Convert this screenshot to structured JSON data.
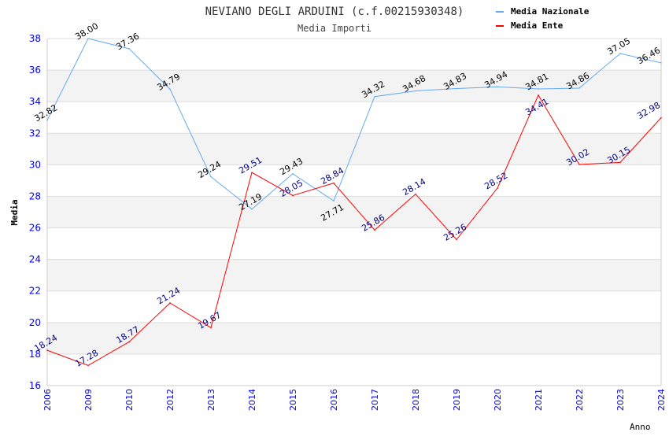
{
  "chart_data": {
    "type": "line",
    "title": "NEVIANO DEGLI ARDUINI (c.f.00215930348)",
    "subtitle": "Media Importi",
    "xlabel": "Anno",
    "ylabel": "Media",
    "ylim": [
      16,
      38
    ],
    "yticks": [
      "16",
      "18",
      "20",
      "22",
      "24",
      "26",
      "28",
      "30",
      "32",
      "34",
      "36",
      "38"
    ],
    "categories": [
      "2006",
      "2009",
      "2010",
      "2012",
      "2013",
      "2014",
      "2015",
      "2016",
      "2017",
      "2018",
      "2019",
      "2020",
      "2021",
      "2022",
      "2023",
      "2024"
    ],
    "grid": true,
    "legend_position": "top-right",
    "series": [
      {
        "name": "Media Nazionale",
        "color": "#66aaee",
        "label_color": "#000000",
        "values": [
          32.82,
          38.0,
          37.36,
          34.79,
          29.24,
          27.19,
          29.43,
          27.71,
          34.32,
          34.68,
          34.83,
          34.94,
          34.81,
          34.86,
          37.05,
          36.46
        ],
        "labels": [
          "32.82",
          "38.00",
          "37.36",
          "34.79",
          "29.24",
          "27.19",
          "29.43",
          "27.71",
          "34.32",
          "34.68",
          "34.83",
          "34.94",
          "34.81",
          "34.86",
          "37.05",
          "36.46"
        ]
      },
      {
        "name": "Media Ente",
        "color": "#ff0000",
        "label_color": "#000088",
        "values": [
          18.24,
          17.28,
          18.77,
          21.24,
          19.67,
          29.51,
          28.05,
          28.84,
          25.86,
          28.14,
          25.26,
          28.52,
          34.41,
          30.02,
          30.15,
          32.98
        ],
        "labels": [
          "18.24",
          "17.28",
          "18.77",
          "21.24",
          "19.67",
          "29.51",
          "28.05",
          "28.84",
          "25.86",
          "28.14",
          "25.26",
          "28.52",
          "34.41",
          "30.02",
          "30.15",
          "32.98"
        ]
      }
    ]
  }
}
